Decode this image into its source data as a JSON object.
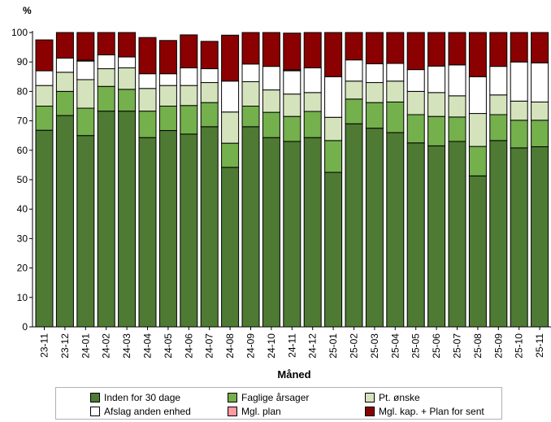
{
  "chart_data": {
    "type": "bar",
    "stacked": true,
    "ylabel": "%",
    "xlabel": "Måned",
    "ylim": [
      0,
      100
    ],
    "yticks": [
      0,
      10,
      20,
      30,
      40,
      50,
      60,
      70,
      80,
      90,
      100
    ],
    "grid": false,
    "legend_position": "bottom",
    "categories": [
      "23-11",
      "23-12",
      "24-01",
      "24-02",
      "24-03",
      "24-04",
      "24-05",
      "24-06",
      "24-07",
      "24-08",
      "24-09",
      "24-10",
      "24-11",
      "24-12",
      "25-01",
      "25-02",
      "25-03",
      "25-04",
      "25-05",
      "25-06",
      "25-07",
      "25-08",
      "25-09",
      "25-10",
      "25-11"
    ],
    "series": [
      {
        "name": "Inden for 30 dage",
        "color": "#4e7a33",
        "values": [
          66.8,
          71.8,
          65.0,
          73.3,
          73.3,
          64.3,
          66.7,
          65.5,
          68.0,
          54.2,
          68.0,
          64.3,
          63.0,
          64.3,
          52.5,
          69.0,
          67.5,
          66.0,
          62.5,
          61.5,
          63.0,
          51.3,
          63.3,
          60.8,
          61.2
        ]
      },
      {
        "name": "Faglige årsager",
        "color": "#74b04b",
        "values": [
          8.2,
          8.2,
          9.3,
          8.4,
          7.4,
          9.0,
          8.3,
          9.7,
          8.2,
          8.2,
          7.0,
          8.6,
          8.5,
          8.9,
          10.8,
          8.4,
          8.7,
          10.4,
          9.6,
          10.0,
          8.3,
          10.0,
          8.8,
          9.4,
          9.0
        ]
      },
      {
        "name": "Pt. ønske",
        "color": "#d5e3bc",
        "values": [
          7.0,
          6.5,
          9.7,
          6.0,
          7.3,
          7.7,
          7.0,
          6.8,
          6.8,
          10.6,
          8.3,
          7.6,
          7.6,
          6.4,
          7.9,
          6.1,
          6.8,
          7.1,
          7.9,
          8.1,
          7.2,
          11.2,
          6.7,
          6.5,
          6.2
        ]
      },
      {
        "name": "Afslag anden enhed",
        "color": "#ffffff",
        "values": [
          5.0,
          4.8,
          6.3,
          4.7,
          3.7,
          5.0,
          4.0,
          6.0,
          4.7,
          10.5,
          6.0,
          8.0,
          7.9,
          8.4,
          13.8,
          7.2,
          6.4,
          6.0,
          7.4,
          9.0,
          10.5,
          12.5,
          9.7,
          13.3,
          13.3
        ]
      },
      {
        "name": "Mgl. plan",
        "color": "#ff9aa2",
        "values": [
          0,
          0,
          0.3,
          0,
          0,
          0,
          0,
          0,
          0,
          0,
          0,
          0,
          0.3,
          0,
          0,
          0,
          0,
          0,
          0,
          0,
          0,
          0,
          0,
          0,
          0
        ]
      },
      {
        "name": "Mgl. kap. + Plan for sent",
        "color": "#8b0000",
        "values": [
          10.5,
          8.7,
          9.4,
          7.6,
          8.3,
          12.3,
          11.3,
          11.2,
          9.3,
          15.6,
          10.7,
          11.5,
          12.5,
          12.0,
          15.0,
          9.3,
          10.6,
          10.5,
          12.6,
          11.4,
          11.0,
          15.0,
          11.5,
          10.0,
          10.3
        ]
      }
    ]
  }
}
